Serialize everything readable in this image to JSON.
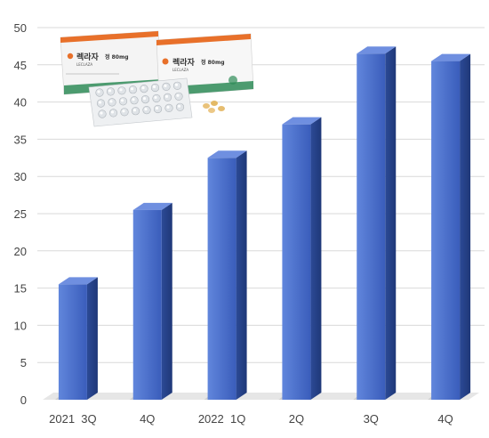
{
  "chart_data": {
    "type": "bar",
    "categories": [
      "2021  3Q",
      "4Q",
      "2022  1Q",
      "2Q",
      "3Q",
      "4Q"
    ],
    "values": [
      15.5,
      25.5,
      32.5,
      37,
      46.5,
      45.5
    ],
    "ylim": [
      0,
      50
    ],
    "yticks": [
      "0",
      "5",
      "10",
      "15",
      "20",
      "25",
      "30",
      "35",
      "40",
      "45",
      "50"
    ],
    "grid": true,
    "colors": {
      "bar_front_light": "#5b7fd6",
      "bar_front_dark": "#3558b8",
      "bar_side": "#2a4690",
      "bar_top": "#6f8fe0",
      "grid": "#d9d9d9",
      "shadow": "#bfbfbf"
    }
  },
  "product_image": {
    "brand": "렉라자",
    "dose": "정 80mg",
    "sub_label": "LECLAZA",
    "accent": "#e8702a",
    "accent_green": "#2e8b57"
  }
}
